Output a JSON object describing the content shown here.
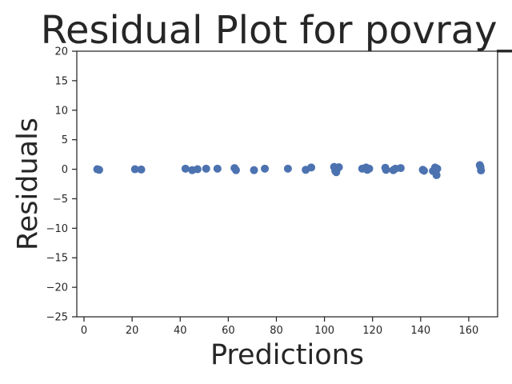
{
  "chart_data": {
    "type": "scatter",
    "title": "Residual Plot for povray_r",
    "xlabel": "Predictions",
    "ylabel": "Residuals",
    "xlim": [
      -3,
      172
    ],
    "ylim": [
      -25,
      20
    ],
    "xticks": [
      0,
      20,
      40,
      60,
      80,
      100,
      120,
      140,
      160
    ],
    "yticks": [
      -25,
      -20,
      -15,
      -10,
      -5,
      0,
      5,
      10,
      15,
      20
    ],
    "grid": false,
    "marker_color": "#4c72b0",
    "points": [
      {
        "x": 5.5,
        "y": 0.0
      },
      {
        "x": 6.3,
        "y": -0.1
      },
      {
        "x": 21.2,
        "y": 0.0
      },
      {
        "x": 23.8,
        "y": -0.05
      },
      {
        "x": 42.2,
        "y": 0.1
      },
      {
        "x": 45.0,
        "y": -0.15
      },
      {
        "x": 47.2,
        "y": 0.0
      },
      {
        "x": 50.8,
        "y": 0.1
      },
      {
        "x": 55.5,
        "y": 0.1
      },
      {
        "x": 62.6,
        "y": 0.2
      },
      {
        "x": 63.2,
        "y": -0.15
      },
      {
        "x": 70.7,
        "y": -0.15
      },
      {
        "x": 75.2,
        "y": 0.1
      },
      {
        "x": 84.8,
        "y": 0.1
      },
      {
        "x": 92.2,
        "y": -0.1
      },
      {
        "x": 94.5,
        "y": 0.3
      },
      {
        "x": 104.0,
        "y": 0.4
      },
      {
        "x": 104.5,
        "y": -0.3
      },
      {
        "x": 104.9,
        "y": -0.5
      },
      {
        "x": 105.3,
        "y": 0.1
      },
      {
        "x": 106.0,
        "y": 0.35
      },
      {
        "x": 115.7,
        "y": 0.1
      },
      {
        "x": 117.3,
        "y": 0.3
      },
      {
        "x": 117.8,
        "y": -0.1
      },
      {
        "x": 118.6,
        "y": 0.1
      },
      {
        "x": 125.3,
        "y": 0.25
      },
      {
        "x": 125.6,
        "y": -0.1
      },
      {
        "x": 128.6,
        "y": -0.15
      },
      {
        "x": 129.5,
        "y": 0.1
      },
      {
        "x": 131.7,
        "y": 0.2
      },
      {
        "x": 140.9,
        "y": -0.1
      },
      {
        "x": 141.4,
        "y": -0.25
      },
      {
        "x": 145.1,
        "y": -0.3
      },
      {
        "x": 146.0,
        "y": 0.3
      },
      {
        "x": 146.3,
        "y": -0.6
      },
      {
        "x": 146.6,
        "y": -1.0
      },
      {
        "x": 146.9,
        "y": 0.1
      },
      {
        "x": 164.6,
        "y": 0.7
      },
      {
        "x": 164.9,
        "y": 0.4
      },
      {
        "x": 165.1,
        "y": -0.2
      }
    ]
  }
}
